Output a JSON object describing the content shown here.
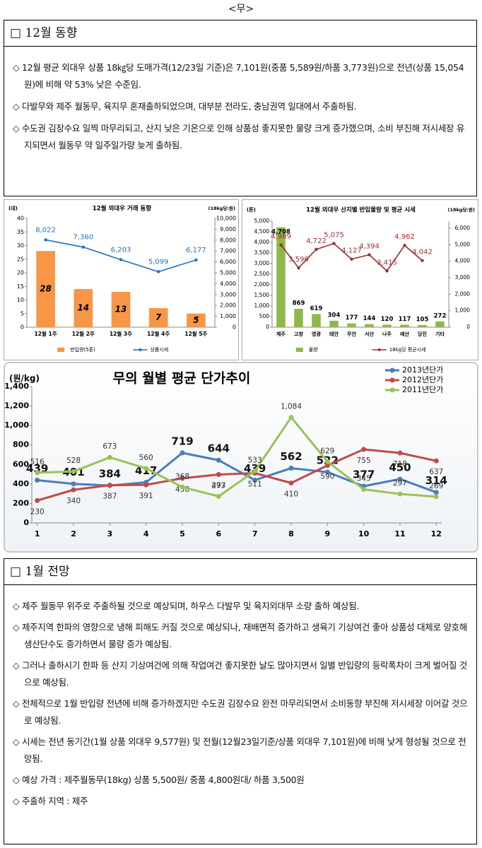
{
  "header": "<무>",
  "section1": {
    "title": "□ 12월 동향",
    "bullets": [
      "◇ 12월 평균 외대우 상품 18㎏당 도매가격(12/23일 기준)은 7,101원(중품 5,589원/하품 3,773원)으로 전년(상품 15,054원)에 비해 약 53% 낮은 수준임.",
      "◇ 다발무와 제주 월동무, 육지무 혼재출하되었으며, 대부분 전라도, 충남권역 일대에서 주출하됨.",
      "◇ 수도권 김장수요 일찍 마무리되고, 산지 낮은 기온으로 인해 상품성 좋지못한 물량 크게 증가했으며, 소비 부진해 저시세장 유지되면서 월동무 약 일주일가량 늦게 출하됨."
    ]
  },
  "chart_data": [
    {
      "type": "bar",
      "title": "12월 외대우 거래 동향",
      "y_label": "(대)",
      "y2_label": "(18kg당:원)",
      "categories": [
        "12월 1주",
        "12월 2주",
        "12월 3주",
        "12월 4주",
        "12월 5주"
      ],
      "series": [
        {
          "name": "반입량(5톤)",
          "color": "#f79646",
          "values": [
            28,
            14,
            13,
            7,
            5
          ]
        },
        {
          "name": "상품시세",
          "color": "#1f6fc5",
          "type": "line",
          "axis": "y2",
          "values": [
            8022,
            7360,
            6203,
            5099,
            6177
          ],
          "value_labels": [
            "8,022",
            "7,360",
            "6,203",
            "5,099",
            "6,177"
          ]
        }
      ],
      "ylim": [
        0,
        40
      ],
      "yticks": [
        0,
        5,
        10,
        15,
        20,
        25,
        30,
        35,
        40
      ],
      "y2lim": [
        0,
        10000
      ],
      "y2ticks": [
        0,
        {
          "value": 1000,
          "label": "1,000"
        },
        {
          "value": 2000,
          "label": "2,000"
        },
        {
          "value": 3000,
          "label": "3,000"
        },
        {
          "value": 4000,
          "label": "4,000"
        },
        {
          "value": 5000,
          "label": "5,000"
        },
        {
          "value": 6000,
          "label": "6,000"
        },
        {
          "value": 7000,
          "label": "7,000"
        },
        {
          "value": 8000,
          "label": "8,000"
        },
        {
          "value": 9000,
          "label": "9,000"
        },
        {
          "value": 10000,
          "label": "10,000"
        }
      ],
      "legend": "bottom",
      "grid": false
    },
    {
      "type": "bar",
      "title": "12월 외대우 산지별 반입물량 및 평균 시세",
      "y_label": "(톤)",
      "y2_label": "(18kg당:원)",
      "categories": [
        "제주",
        "고창",
        "영광",
        "태안",
        "무안",
        "서산",
        "나주",
        "예산",
        "당진",
        "기타"
      ],
      "series": [
        {
          "name": "물량",
          "color": "#8db84a",
          "values": [
            4708,
            869,
            619,
            304,
            177,
            144,
            120,
            117,
            105,
            272
          ],
          "value_labels": [
            "4,708",
            "869",
            "619",
            "304",
            "177",
            "144",
            "120",
            "117",
            "105",
            "272"
          ]
        },
        {
          "name": "18kg당 평균시세",
          "color": "#9b2d30",
          "type": "line",
          "axis": "y2",
          "values": [
            4989,
            3596,
            4722,
            5075,
            4127,
            4394,
            3415,
            4962,
            4042,
            null
          ],
          "value_labels": [
            "4,989",
            "3,596",
            "4,722",
            "5,075",
            "4,127",
            "4,394",
            "3,415",
            "4,962",
            "4,042",
            null
          ]
        }
      ],
      "ylim": [
        0,
        5000
      ],
      "yticks": [
        0,
        500,
        {
          "value": 1000,
          "label": "1,000"
        },
        {
          "value": 1500,
          "label": "1,500"
        },
        {
          "value": 2000,
          "label": "2,000"
        },
        {
          "value": 2500,
          "label": "2,500"
        },
        {
          "value": 3000,
          "label": "3,000"
        },
        {
          "value": 3500,
          "label": "3,500"
        },
        {
          "value": 4000,
          "label": "4,000"
        },
        {
          "value": 4500,
          "label": "4,500"
        },
        {
          "value": 5000,
          "label": "5,000"
        }
      ],
      "y2lim": [
        0,
        6430
      ],
      "y2ticks": [
        0,
        {
          "value": 1000,
          "label": "1,000"
        },
        {
          "value": 2000,
          "label": "2,000"
        },
        {
          "value": 3000,
          "label": "3,000"
        },
        {
          "value": 4000,
          "label": "4,000"
        },
        {
          "value": 5000,
          "label": "5,000"
        },
        {
          "value": 6000,
          "label": "6,000"
        }
      ],
      "legend": "bottom",
      "grid": false
    },
    {
      "type": "line",
      "title": "무의 월별 평균 단가추이",
      "y_label": "(원/kg)",
      "x": [
        1,
        2,
        3,
        4,
        5,
        6,
        7,
        8,
        9,
        10,
        11,
        12
      ],
      "series": [
        {
          "name": "2013년단가",
          "color": "#4a7ebb",
          "values": [
            439,
            401,
            384,
            417,
            719,
            644,
            439,
            562,
            522,
            377,
            450,
            314
          ]
        },
        {
          "name": "2012년단가",
          "color": "#be4b48",
          "values": [
            230,
            340,
            387,
            391,
            458,
            497,
            511,
            410,
            590,
            755,
            718,
            637
          ]
        },
        {
          "name": "2011년단가",
          "color": "#98c454",
          "values": [
            516,
            528,
            673,
            560,
            368,
            273,
            533,
            1084,
            629,
            345,
            297,
            269
          ],
          "value_labels": [
            "516",
            "528",
            "673",
            "560",
            "368",
            "273",
            "533",
            "1,084",
            "629",
            "345",
            "297",
            "269"
          ]
        }
      ],
      "xlim": [
        0.85,
        12.15
      ],
      "xticks": [
        1,
        2,
        3,
        4,
        5,
        6,
        7,
        8,
        9,
        10,
        11,
        12
      ],
      "ylim": [
        0,
        1400
      ],
      "yticks": [
        0,
        200,
        400,
        600,
        800,
        {
          "value": 1000,
          "label": "1,000"
        },
        {
          "value": 1200,
          "label": "1,200"
        },
        {
          "value": 1400,
          "label": "1,400"
        }
      ],
      "legend": "upper right",
      "grid": false
    }
  ],
  "section2": {
    "title": "□ 1월 전망",
    "bullets": [
      "◇ 제주 월동무 위주로 주출하될 것으로 예상되며, 하우스 다발무 및 육지외대무 소량 출하 예상됨.",
      "◇ 제주지역 한파의 영향으로 냉해 피해도 커질 것으로 예상되나, 재배면적 증가하고 생육기 기상여건 좋아 상품성 대체로 양호해 생산단수도 증가하면서 물량 증가 예상됨.",
      "◇ 그러나 출하시기 한파 등 산지 기상여건에 의해 작업여건 좋지못한 날도 많아지면서 일별 반입량의 등락폭차이 크게 벌어질 것으로 예상됨.",
      "◇ 전체적으로 1월 반입량 전년에 비해 증가하겠지만 수도권 김장수요 완전 마무리되면서 소비동향 부진해 저시세장 이어갈 것으로 예상됨.",
      "◇ 시세는 전년 동기간(1월 상품 외대우 9,577원) 및 전월(12월23일기준/상품 외대우 7,101원)에 비해 낮게 형성될 것으로 전망됨.",
      "◇ 예상 가격 : 제주월동무(18kg) 상품 5,500원/ 중품 4,800원대/ 하품 3,500원",
      "◇ 주출하 지역 : 제주"
    ]
  }
}
